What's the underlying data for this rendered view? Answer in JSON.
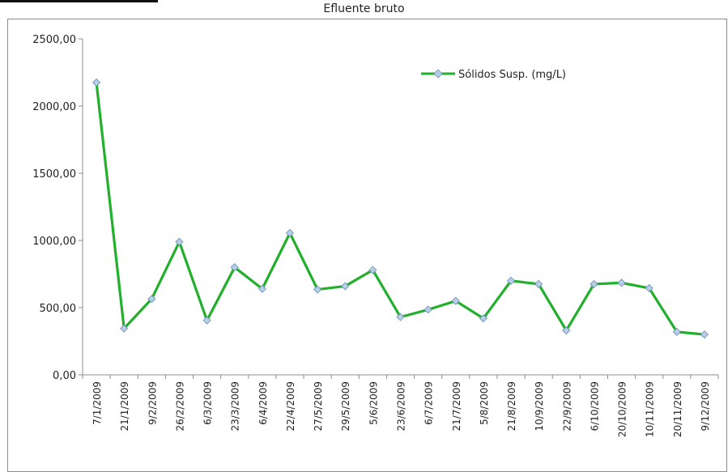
{
  "chart_data": {
    "type": "line",
    "title": "Efluente bruto",
    "xlabel": "",
    "ylabel": "",
    "ylim": [
      0,
      2500
    ],
    "y_ticks": [
      "0,00",
      "500,00",
      "1000,00",
      "1500,00",
      "2000,00",
      "2500,00"
    ],
    "legend_position": "top-right",
    "grid": false,
    "categories": [
      "7/1/2009",
      "21/1/2009",
      "9/2/2009",
      "26/2/2009",
      "6/3/2009",
      "23/3/2009",
      "6/4/2009",
      "22/4/2009",
      "27/5/2009",
      "29/5/2009",
      "5/6/2009",
      "23/6/2009",
      "6/7/2009",
      "21/7/2009",
      "5/8/2009",
      "21/8/2009",
      "10/9/2009",
      "22/9/2009",
      "6/10/2009",
      "20/10/2009",
      "10/11/2009",
      "20/11/2009",
      "9/12/2009"
    ],
    "series": [
      {
        "name": "Sólidos Susp. (mg/L)",
        "color": "#22b02c",
        "marker_color": "#b8cde6",
        "values": [
          2175,
          345,
          565,
          990,
          405,
          800,
          640,
          1055,
          635,
          660,
          780,
          430,
          485,
          550,
          420,
          700,
          675,
          330,
          675,
          685,
          645,
          320,
          300
        ]
      }
    ]
  }
}
